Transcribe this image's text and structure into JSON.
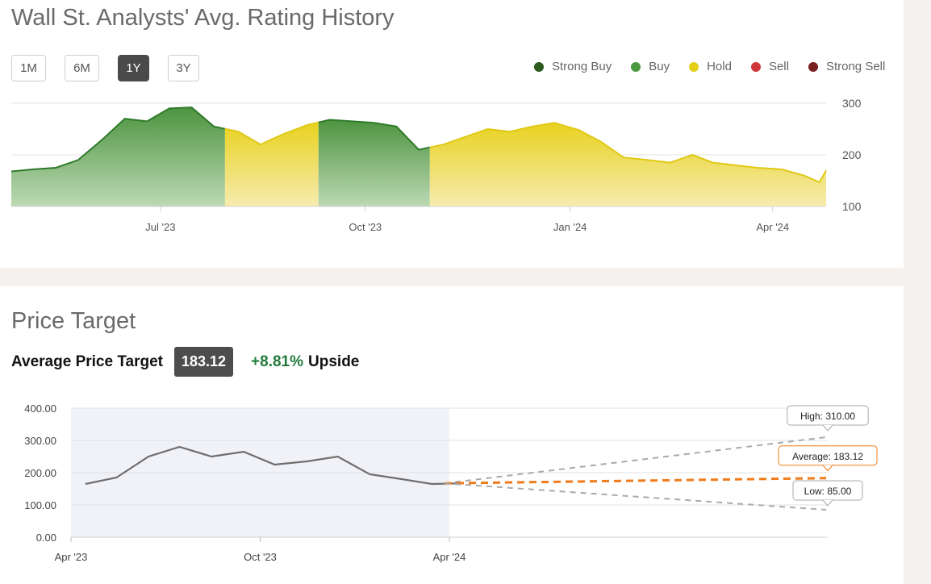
{
  "rating_history": {
    "title": "Wall St. Analysts' Avg. Rating History",
    "range_buttons": [
      {
        "label": "1M",
        "active": false
      },
      {
        "label": "6M",
        "active": false
      },
      {
        "label": "1Y",
        "active": true
      },
      {
        "label": "3Y",
        "active": false
      }
    ],
    "legend": [
      {
        "label": "Strong Buy",
        "color": "#2c5a1f"
      },
      {
        "label": "Buy",
        "color": "#4c9a3f"
      },
      {
        "label": "Hold",
        "color": "#e3cf1a"
      },
      {
        "label": "Sell",
        "color": "#d0363a"
      },
      {
        "label": "Strong Sell",
        "color": "#7a1f1f"
      }
    ]
  },
  "price_target": {
    "title": "Price Target",
    "average_label": "Average Price Target",
    "average_value": "183.12",
    "upside_pct": "+8.81%",
    "upside_word": "Upside",
    "callouts": {
      "high": "High: 310.00",
      "average": "Average: 183.12",
      "low": "Low: 85.00"
    }
  },
  "chart_data": [
    {
      "type": "area",
      "title": "Wall St. Analysts' Avg. Rating History",
      "ylim": [
        100,
        300
      ],
      "y_ticks": [
        "300",
        "200",
        "100"
      ],
      "x_tick_labels": [
        "Jul '23",
        "Oct '23",
        "Jan '24",
        "Apr '24"
      ],
      "x": [
        "2023-04-25",
        "2023-05-05",
        "2023-05-15",
        "2023-05-25",
        "2023-06-05",
        "2023-06-15",
        "2023-06-25",
        "2023-07-05",
        "2023-07-15",
        "2023-07-25",
        "2023-08-05",
        "2023-08-15",
        "2023-08-25",
        "2023-09-05",
        "2023-09-15",
        "2023-09-25",
        "2023-10-05",
        "2023-10-15",
        "2023-10-25",
        "2023-11-05",
        "2023-11-15",
        "2023-11-25",
        "2023-12-05",
        "2023-12-15",
        "2023-12-25",
        "2024-01-05",
        "2024-01-15",
        "2024-01-25",
        "2024-02-05",
        "2024-02-15",
        "2024-02-25",
        "2024-03-05",
        "2024-03-15",
        "2024-03-25",
        "2024-04-05",
        "2024-04-15",
        "2024-04-22",
        "2024-04-25"
      ],
      "values": [
        168,
        172,
        175,
        190,
        230,
        270,
        265,
        290,
        292,
        255,
        245,
        220,
        240,
        258,
        268,
        265,
        262,
        255,
        210,
        220,
        235,
        250,
        245,
        255,
        262,
        248,
        225,
        195,
        190,
        185,
        200,
        185,
        180,
        175,
        172,
        160,
        147,
        170
      ],
      "rating_periods": [
        {
          "from": "2023-04-25",
          "to": "2023-07-30",
          "rating": "Buy"
        },
        {
          "from": "2023-07-30",
          "to": "2023-09-10",
          "rating": "Hold"
        },
        {
          "from": "2023-09-10",
          "to": "2023-10-30",
          "rating": "Buy"
        },
        {
          "from": "2023-10-30",
          "to": "2024-04-25",
          "rating": "Hold"
        }
      ]
    },
    {
      "type": "line",
      "title": "Price Target",
      "ylim": [
        0,
        400
      ],
      "y_ticks": [
        "400.00",
        "300.00",
        "200.00",
        "100.00",
        "0.00"
      ],
      "x_tick_labels": [
        "Apr '23",
        "Oct '23",
        "Apr '24"
      ],
      "series": [
        {
          "x": [
            "2023-04",
            "2023-05",
            "2023-06",
            "2023-07",
            "2023-08",
            "2023-09",
            "2023-10",
            "2023-11",
            "2023-12",
            "2024-01",
            "2024-02",
            "2024-03",
            "2024-04"
          ],
          "values": [
            165,
            185,
            250,
            280,
            250,
            265,
            225,
            235,
            250,
            195,
            180,
            165,
            167
          ]
        }
      ],
      "projections": [
        {
          "label": "High",
          "start": 167,
          "end": 310.0,
          "color": "#aaaaaa"
        },
        {
          "label": "Average",
          "start": 167,
          "end": 183.12,
          "color": "#f07b1a"
        },
        {
          "label": "Low",
          "start": 167,
          "end": 85.0,
          "color": "#aaaaaa"
        }
      ]
    }
  ]
}
